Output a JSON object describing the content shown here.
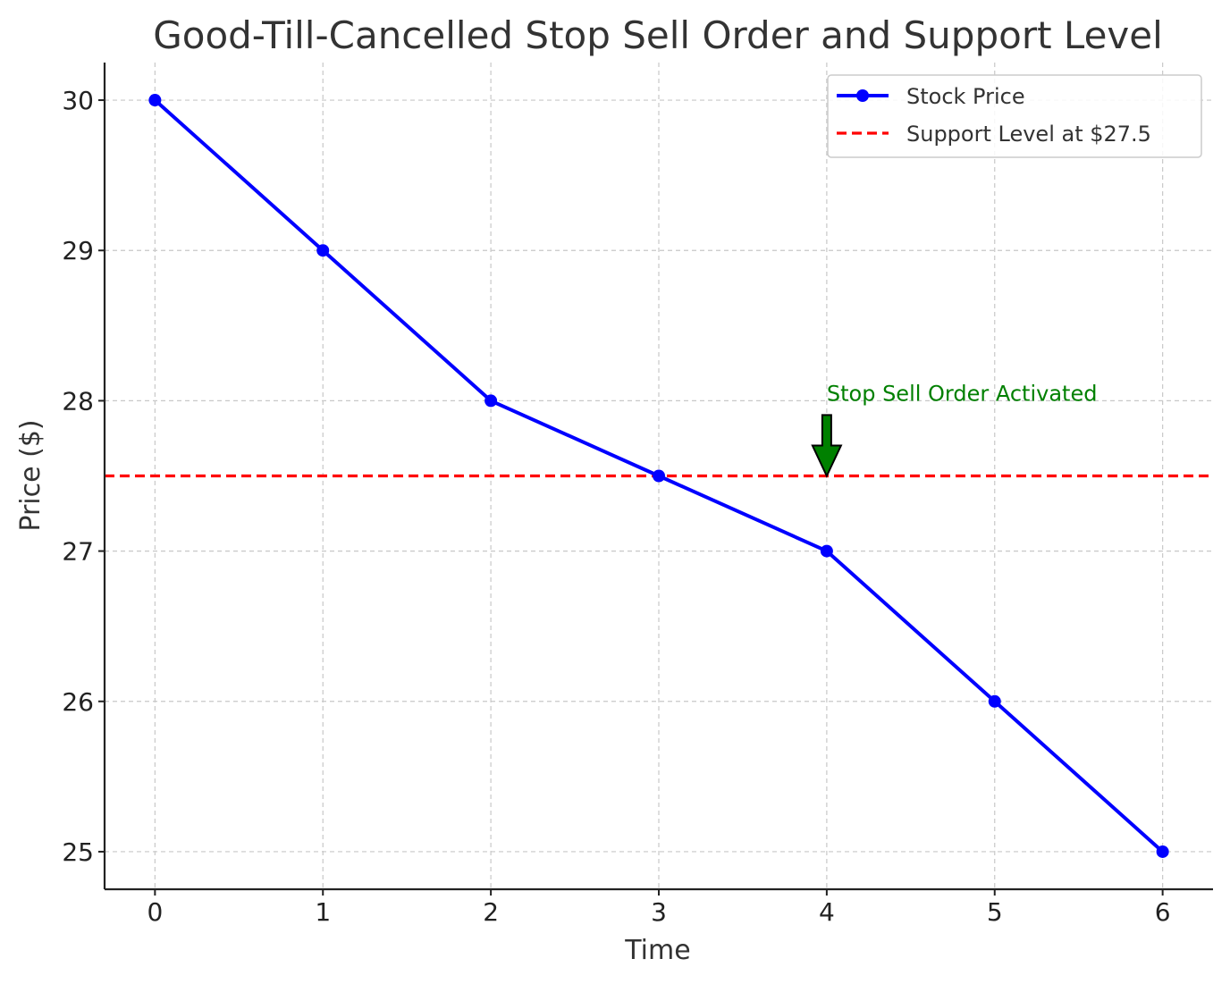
{
  "chart_data": {
    "type": "line",
    "title": "Good-Till-Cancelled Stop Sell Order and Support Level",
    "xlabel": "Time",
    "ylabel": "Price ($)",
    "x": [
      0,
      1,
      2,
      3,
      4,
      5,
      6
    ],
    "xlim": [
      -0.3,
      6.3
    ],
    "ylim": [
      24.75,
      30.25
    ],
    "x_ticks": [
      "0",
      "1",
      "2",
      "3",
      "4",
      "5",
      "6"
    ],
    "y_ticks": [
      "25",
      "26",
      "27",
      "28",
      "29",
      "30"
    ],
    "grid": true,
    "legend_position": "top-right",
    "series": [
      {
        "name": "Stock Price",
        "values": [
          30,
          29,
          28,
          27.5,
          27,
          26,
          25
        ],
        "color": "#0000ff",
        "style": "solid",
        "marker": "circle"
      }
    ],
    "hlines": [
      {
        "name": "Support Level at $27.5",
        "y": 27.5,
        "color": "#ff0000",
        "style": "dashed"
      }
    ],
    "annotations": [
      {
        "text": "Stop Sell Order Activated",
        "x": 4,
        "y": 27.5,
        "text_y": 28,
        "color": "#008000",
        "arrow_color": "#008000"
      }
    ]
  }
}
